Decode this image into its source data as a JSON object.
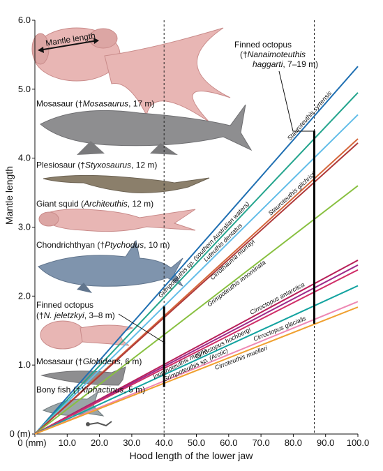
{
  "chart_data": {
    "type": "line",
    "xlabel": "Hood length of the lower jaw",
    "ylabel": "Mantle length",
    "xlim": [
      0,
      100
    ],
    "ylim": [
      0,
      6
    ],
    "x_ticks": [
      "0 (mm)",
      "10.0",
      "20.0",
      "30.0",
      "40.0",
      "50.0",
      "60.0",
      "70.0",
      "80.0",
      "90.0",
      "100.0"
    ],
    "y_ticks": [
      "0 (m)",
      "1.0",
      "2.0",
      "3.0",
      "4.0",
      "5.0",
      "6.0"
    ],
    "grid": false,
    "series": [
      {
        "name": "Stauroteuthis syrtensis",
        "color": "#1f6fb2",
        "x": [
          0,
          100
        ],
        "y": [
          0,
          5.33
        ]
      },
      {
        "name": "Grimpoteuthis sp. (southern Australian waters)",
        "color": "#25a58e",
        "x": [
          0,
          100
        ],
        "y": [
          0,
          4.95
        ]
      },
      {
        "name": "Luteuthis dentatus",
        "color": "#62bde8",
        "x": [
          0,
          100
        ],
        "y": [
          0,
          4.63
        ]
      },
      {
        "name": "Stauroteuthis gilchristi",
        "color": "#d5663a",
        "x": [
          0,
          100
        ],
        "y": [
          0,
          4.28
        ]
      },
      {
        "name": "Cirrothauma murrayi",
        "color": "#b03a3a",
        "x": [
          0,
          100
        ],
        "y": [
          0,
          4.22
        ]
      },
      {
        "name": "Grimpoteuthis innominata",
        "color": "#88c040",
        "x": [
          0,
          100
        ],
        "y": [
          0,
          3.6
        ]
      },
      {
        "name": "Cirroctopus antarctica",
        "color": "#b8205a",
        "x": [
          0,
          100
        ],
        "y": [
          0,
          2.52
        ]
      },
      {
        "name": "Inopinoteuthis magna",
        "color": "#9e2a8a",
        "x": [
          0,
          100
        ],
        "y": [
          0,
          2.45
        ]
      },
      {
        "name": "Cirroctopus hochbergi",
        "color": "#d02e68",
        "x": [
          0,
          100
        ],
        "y": [
          0,
          2.38
        ]
      },
      {
        "name": "Grimpoteuthis sp. (Arctic)",
        "color": "#13a3a0",
        "x": [
          0,
          100
        ],
        "y": [
          0,
          2.15
        ]
      },
      {
        "name": "Cirroctopus glacialis",
        "color": "#ee88b4",
        "x": [
          0,
          100
        ],
        "y": [
          0,
          1.92
        ]
      },
      {
        "name": "Cirroteuthis muelleri",
        "color": "#f0a030",
        "x": [
          0,
          100
        ],
        "y": [
          0,
          1.84
        ]
      }
    ],
    "reference_lines": [
      {
        "x": 40,
        "style": "dashed"
      },
      {
        "x": 86.5,
        "style": "dashed"
      }
    ],
    "ranges": [
      {
        "x": 40,
        "y_min": 0.68,
        "y_max": 1.85
      },
      {
        "x": 86.5,
        "y_min": 1.6,
        "y_max": 4.4
      }
    ],
    "animal_labels": [
      {
        "pre": "Mosasaur (†",
        "name": "Mosasaurus",
        "post": ", 17 m)",
        "y": 4.75
      },
      {
        "pre": "Plesiosaur (†",
        "name": "Styxosaurus",
        "post": ", 12 m)",
        "y": 3.86
      },
      {
        "pre": "Giant squid (",
        "name": "Architeuthis",
        "post": ", 12 m)",
        "y": 3.3
      },
      {
        "pre": "Chondrichthyan (†",
        "name": "Ptychodus",
        "post": ", 10 m)",
        "y": 2.7
      },
      {
        "pre": "Mosasaur (†",
        "name": "Globidens",
        "post": ", 6 m)",
        "y": 1.01
      },
      {
        "pre": "Bony fish (†",
        "name": "Xiphactinus",
        "post": ", 5 m)",
        "y": 0.6
      }
    ],
    "annotations": {
      "mantle_length": "Mantle length",
      "finned_octopus_small": {
        "line1": "Finned octopus",
        "pre": "(†",
        "name": "N. jeletzkyi",
        "post": ", 3–8 m)"
      },
      "finned_octopus_large": {
        "line1": "Finned octopus",
        "pre": "(†",
        "name": "Nanaimoteuthis",
        "line3": "haggarti",
        "post": ", 7–19 m)"
      }
    }
  },
  "colors": {
    "animal_pink": "#e8b6b4",
    "animal_pink_dark": "#c98b8a",
    "mosasaur_grey": "#8e8e90",
    "shark_blue": "#7f94ad",
    "plesiosaur_brown": "#8b7f6b",
    "bracket": "#000000"
  }
}
